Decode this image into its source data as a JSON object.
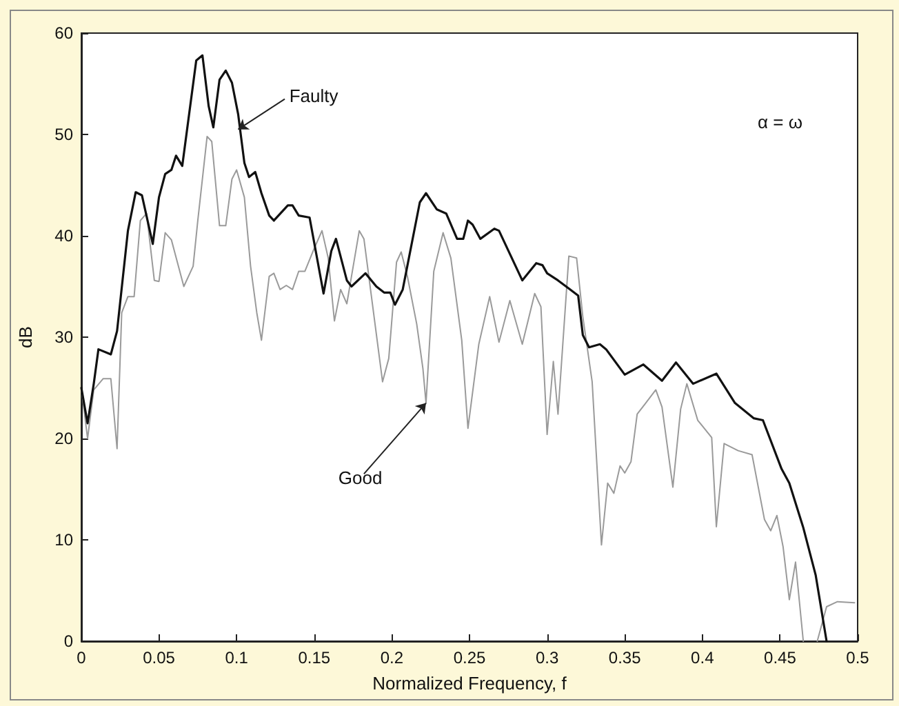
{
  "chart_data": {
    "type": "line",
    "xlabel": "Normalized Frequency, f",
    "ylabel": "dB",
    "xlim": [
      0,
      0.5
    ],
    "ylim": [
      0,
      60
    ],
    "xticks": [
      0,
      0.05,
      0.1,
      0.15,
      0.2,
      0.25,
      0.3,
      0.35,
      0.4,
      0.45,
      0.5
    ],
    "yticks": [
      0,
      10,
      20,
      30,
      40,
      50,
      60
    ],
    "grid": false,
    "marker": "none",
    "line_style": "solid",
    "series": [
      {
        "color": "#9a9a9a",
        "x": [
          0,
          0.004,
          0.008,
          0.014,
          0.019,
          0.023,
          0.026,
          0.03,
          0.034,
          0.038,
          0.042,
          0.047,
          0.05,
          0.054,
          0.058,
          0.066,
          0.072,
          0.075,
          0.081,
          0.084,
          0.089,
          0.093,
          0.097,
          0.1,
          0.105,
          0.109,
          0.113,
          0.116,
          0.121,
          0.124,
          0.128,
          0.132,
          0.136,
          0.14,
          0.144,
          0.149,
          0.155,
          0.159,
          0.163,
          0.167,
          0.171,
          0.179,
          0.182,
          0.194,
          0.198,
          0.203,
          0.206,
          0.21,
          0.216,
          0.22,
          0.222,
          0.227,
          0.233,
          0.238,
          0.245,
          0.249,
          0.256,
          0.263,
          0.269,
          0.276,
          0.284,
          0.292,
          0.296,
          0.3,
          0.304,
          0.307,
          0.314,
          0.319,
          0.323,
          0.329,
          0.335,
          0.339,
          0.343,
          0.347,
          0.35,
          0.354,
          0.358,
          0.363,
          0.37,
          0.374,
          0.381,
          0.386,
          0.39,
          0.397,
          0.406,
          0.409,
          0.414,
          0.423,
          0.432,
          0.44,
          0.444,
          0.448,
          0.452,
          0.456,
          0.46,
          0.465,
          0.47,
          0.474,
          0.48,
          0.487,
          0.498
        ],
        "values": [
          25,
          20,
          24.8,
          25.9,
          25.9,
          19,
          32.4,
          34,
          34,
          41.5,
          42.2,
          35.6,
          35.5,
          40.3,
          39.6,
          35,
          37,
          41.5,
          49.8,
          49.3,
          41,
          41,
          45.6,
          46.5,
          43.8,
          37,
          32.4,
          29.7,
          36,
          36.3,
          34.7,
          35.1,
          34.7,
          36.5,
          36.5,
          38.4,
          40.5,
          37.8,
          31.6,
          34.7,
          33.3,
          40.5,
          39.7,
          25.6,
          27.9,
          37.4,
          38.4,
          36,
          31.3,
          26.9,
          23.5,
          36.5,
          40.3,
          37.8,
          29.7,
          21,
          29.3,
          34,
          29.5,
          33.6,
          29.3,
          34.3,
          33,
          20.4,
          27.6,
          22.4,
          38,
          37.8,
          32,
          25.6,
          9.5,
          15.6,
          14.6,
          17.3,
          16.6,
          17.7,
          22.4,
          23.4,
          24.8,
          23.1,
          15.2,
          22.9,
          25.4,
          21.8,
          20.1,
          11.3,
          19.5,
          18.8,
          18.4,
          12,
          10.9,
          12.4,
          9.3,
          4.1,
          7.8,
          0,
          null,
          0,
          3.4,
          3.9,
          3.8
        ]
      },
      {
        "color": "#111111",
        "x": [
          0,
          0.004,
          0.008,
          0.011,
          0.019,
          0.023,
          0.03,
          0.035,
          0.039,
          0.046,
          0.05,
          0.054,
          0.058,
          0.061,
          0.065,
          0.074,
          0.078,
          0.082,
          0.085,
          0.089,
          0.093,
          0.097,
          0.101,
          0.105,
          0.108,
          0.112,
          0.116,
          0.121,
          0.124,
          0.133,
          0.136,
          0.14,
          0.147,
          0.156,
          0.161,
          0.164,
          0.171,
          0.174,
          0.183,
          0.19,
          0.195,
          0.199,
          0.202,
          0.207,
          0.218,
          0.222,
          0.229,
          0.235,
          0.242,
          0.246,
          0.249,
          0.252,
          0.257,
          0.266,
          0.269,
          0.284,
          0.293,
          0.297,
          0.3,
          0.307,
          0.314,
          0.32,
          0.323,
          0.327,
          0.334,
          0.338,
          0.35,
          0.362,
          0.374,
          0.383,
          0.394,
          0.409,
          0.421,
          0.433,
          0.439,
          0.451,
          0.456,
          0.465,
          0.473,
          0.48
        ],
        "values": [
          25,
          21.5,
          25.4,
          28.8,
          28.3,
          30.6,
          40.5,
          44.3,
          44,
          39.2,
          43.8,
          46.1,
          46.5,
          47.9,
          46.9,
          57.3,
          57.8,
          52.8,
          50.7,
          55.4,
          56.3,
          55.1,
          52,
          47.2,
          45.8,
          46.3,
          44.2,
          42,
          41.5,
          43,
          43,
          42,
          41.8,
          34.3,
          38.5,
          39.7,
          35.6,
          35,
          36.3,
          35,
          34.4,
          34.4,
          33.2,
          34.7,
          43.3,
          44.2,
          42.6,
          42.2,
          39.7,
          39.7,
          41.5,
          41.1,
          39.7,
          40.7,
          40.5,
          35.6,
          37.3,
          37.1,
          36.3,
          35.6,
          34.8,
          34.1,
          30.2,
          29,
          29.3,
          28.8,
          26.3,
          27.3,
          25.7,
          27.5,
          25.4,
          26.4,
          23.5,
          22,
          21.8,
          17,
          15.6,
          11.2,
          6.5,
          0
        ]
      }
    ],
    "annotations": [
      {
        "text": "Faulty",
        "x": 0.101,
        "y": 50.5
      },
      {
        "text": "Good",
        "x": 0.222,
        "y": 23.5
      },
      "α = ω"
    ]
  }
}
